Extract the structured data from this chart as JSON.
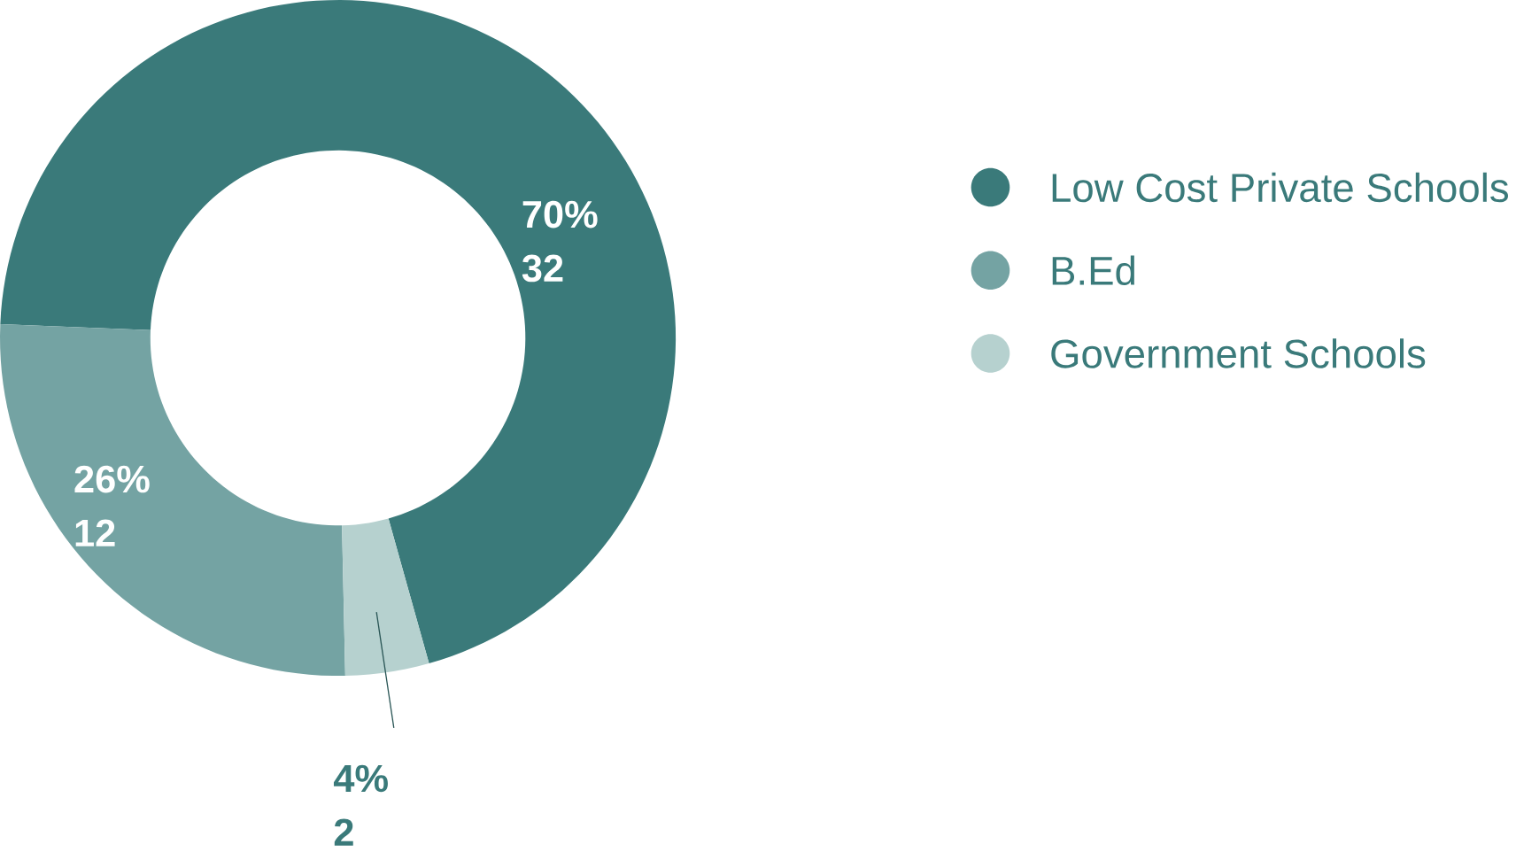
{
  "chart_data": {
    "type": "donut",
    "categories": [
      "Low Cost Private Schools",
      "B.Ed",
      "Government Schools"
    ],
    "values": [
      70,
      26,
      4
    ],
    "colors": [
      "#3a7a7a",
      "#74a3a3",
      "#b6d1cf"
    ],
    "value_labels": [
      "70%",
      "26%",
      "4%"
    ],
    "annotations": [
      "32",
      "12",
      "2"
    ],
    "legend": "right"
  }
}
